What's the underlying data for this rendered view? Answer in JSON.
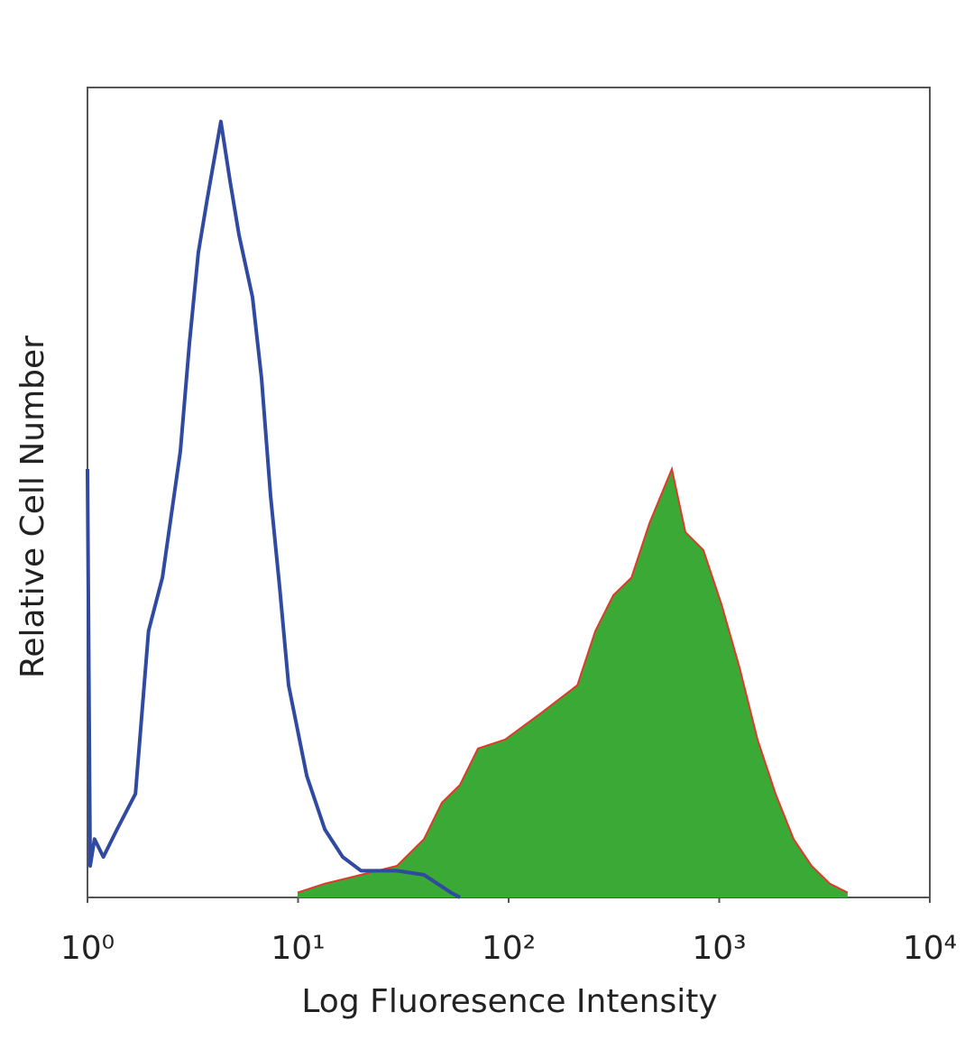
{
  "chart_data": {
    "type": "histogram-overlay",
    "x_label": "Log Fluoresence Intensity",
    "y_label": "Relative Cell Number",
    "xscale": "log",
    "xlim": [
      1,
      10000
    ],
    "ylim": [
      0,
      100
    ],
    "xticks": [
      {
        "value": 1,
        "label": "10⁰"
      },
      {
        "value": 10,
        "label": "10¹"
      },
      {
        "value": 100,
        "label": "10²"
      },
      {
        "value": 1000,
        "label": "10³"
      },
      {
        "value": 10000,
        "label": "10⁴"
      }
    ],
    "grid": false,
    "series": [
      {
        "color": "#3ba935",
        "edge_color": "#e0392b",
        "filled": true,
        "x": [
          9.95,
          13.4,
          19.9,
          29.5,
          39.6,
          48.2,
          58.7,
          71.5,
          96.2,
          143,
          212,
          258,
          314,
          383,
          466,
          596,
          691,
          841,
          1025,
          1248,
          1521,
          1853,
          2255,
          2748,
          3350,
          4074
        ],
        "values": [
          0.6,
          1.7,
          2.8,
          3.9,
          7.2,
          11.7,
          13.9,
          18.4,
          19.5,
          22.8,
          26.2,
          32.9,
          37.3,
          39.5,
          46.2,
          52.9,
          45.1,
          42.9,
          36.2,
          28.4,
          19.5,
          12.8,
          7.2,
          3.9,
          1.7,
          0.6
        ]
      },
      {
        "color": "#2f4aa0",
        "filled": false,
        "x": [
          1,
          1.03,
          1.08,
          1.19,
          1.38,
          1.69,
          1.95,
          2.27,
          2.76,
          3.05,
          3.36,
          3.71,
          4.3,
          4.75,
          5.24,
          6.08,
          6.71,
          7.4,
          8.17,
          9.02,
          11.0,
          13.4,
          16.3,
          19.9,
          29.5,
          39.6,
          53.2,
          58.7
        ],
        "values": [
          52.9,
          3.9,
          7.2,
          5.0,
          8.4,
          12.8,
          32.9,
          39.5,
          55.1,
          68.5,
          79.6,
          86.3,
          95.8,
          88.5,
          81.8,
          74.1,
          64.1,
          49.6,
          38.4,
          26.2,
          15.0,
          8.4,
          5.0,
          3.3,
          3.3,
          2.8,
          0.6,
          0
        ]
      }
    ]
  }
}
